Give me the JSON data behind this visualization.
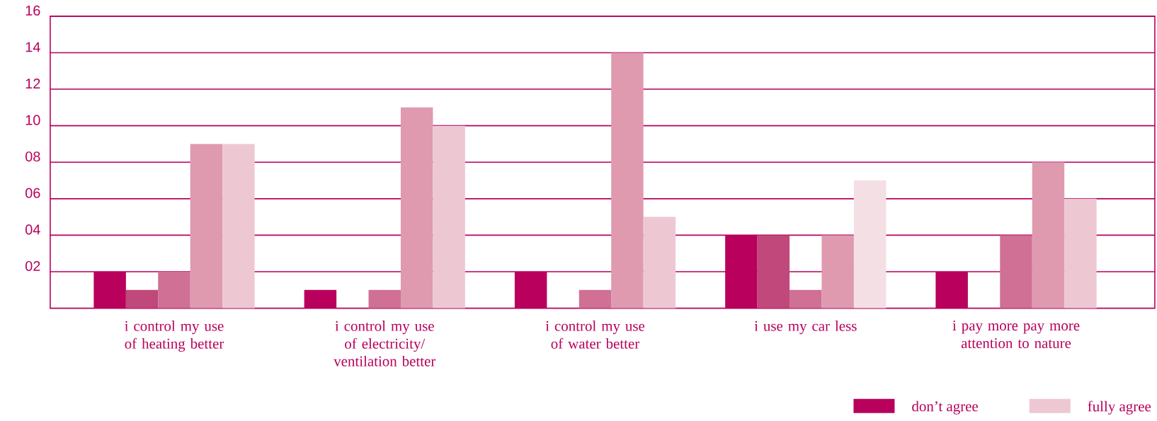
{
  "chart_data": {
    "type": "bar",
    "categories": [
      "i control my use of heating better",
      "i control my use of electricity/ ventilation better",
      "i control my use of water better",
      "i use my car less",
      "i pay more pay more attention to nature"
    ],
    "series": [
      {
        "name": "don’t agree",
        "color": "#b8005c",
        "values": [
          2,
          1,
          2,
          4,
          2
        ]
      },
      {
        "color": "#c0487a",
        "values": [
          1,
          0,
          0,
          4,
          0
        ]
      },
      {
        "color": "#cf7094",
        "values": [
          2,
          1,
          1,
          1,
          4
        ]
      },
      {
        "color": "#df9ab0",
        "values": [
          9,
          11,
          14,
          4,
          8
        ]
      },
      {
        "name": "fully agree",
        "color": "#edc8d3",
        "colors": [
          "#edc8d3",
          "#edc8d3",
          "#edc8d3",
          "#f3dfe4",
          "#edc8d3"
        ],
        "values": [
          9,
          10,
          5,
          7,
          6
        ]
      }
    ],
    "ylim": [
      0,
      16
    ],
    "yticks": [
      {
        "value": 2,
        "label": "02"
      },
      {
        "value": 4,
        "label": "04"
      },
      {
        "value": 6,
        "label": "06"
      },
      {
        "value": 8,
        "label": "08"
      },
      10,
      12,
      14,
      16
    ],
    "grid": "y",
    "legend": "bottom right"
  }
}
